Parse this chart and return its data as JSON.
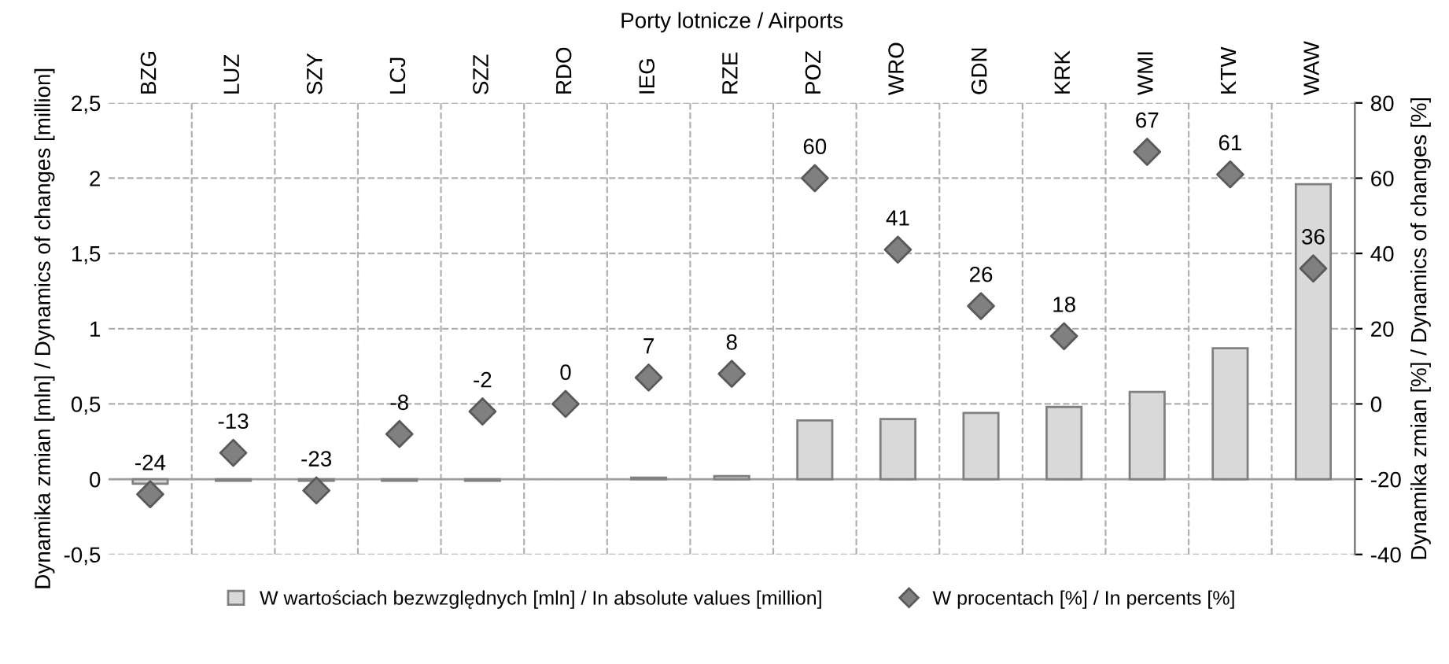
{
  "chart_data": {
    "type": "bar",
    "xlabel": "Porty lotnicze / Airports",
    "ylabel": "Dynamika zmian [mln] / Dynamics of changes [million]",
    "y2label": "Dynamika zmian [%] / Dynamics of changes [%]",
    "categories": [
      "BZG",
      "LUZ",
      "SZY",
      "LCJ",
      "SZZ",
      "RDO",
      "IEG",
      "RZE",
      "POZ",
      "WRO",
      "GDN",
      "KRK",
      "WMI",
      "KTW",
      "WAW"
    ],
    "series": [
      {
        "name": "W wartościach bezwzględnych [mln] / In absolute values [million]",
        "color": "#d9d9d9",
        "values": [
          -0.03,
          -0.01,
          -0.01,
          -0.01,
          -0.01,
          0,
          0.01,
          0.02,
          0.39,
          0.4,
          0.44,
          0.48,
          0.58,
          0.87,
          1.96
        ]
      },
      {
        "name": "W procentach [%] / In percents [%]",
        "type": "scatter",
        "axis": "y2",
        "color": "#808080",
        "marker": "diamond",
        "data_labels": true,
        "values": [
          -24,
          -13,
          -23,
          -8,
          -2,
          0,
          7,
          8,
          60,
          41,
          26,
          18,
          67,
          61,
          36
        ]
      }
    ],
    "ylim": [
      -0.5,
      2.5
    ],
    "yticks": [
      {
        "value": -0.5,
        "label": "-0,5"
      },
      0,
      {
        "value": 0.5,
        "label": "0,5"
      },
      1,
      {
        "value": 1.5,
        "label": "1,5"
      },
      2,
      {
        "value": 2.5,
        "label": "2,5"
      }
    ],
    "y2lim": [
      -40,
      80
    ],
    "y2ticks": [
      -40,
      -20,
      0,
      20,
      40,
      60,
      80
    ],
    "grid": true,
    "legend": "bottom"
  }
}
